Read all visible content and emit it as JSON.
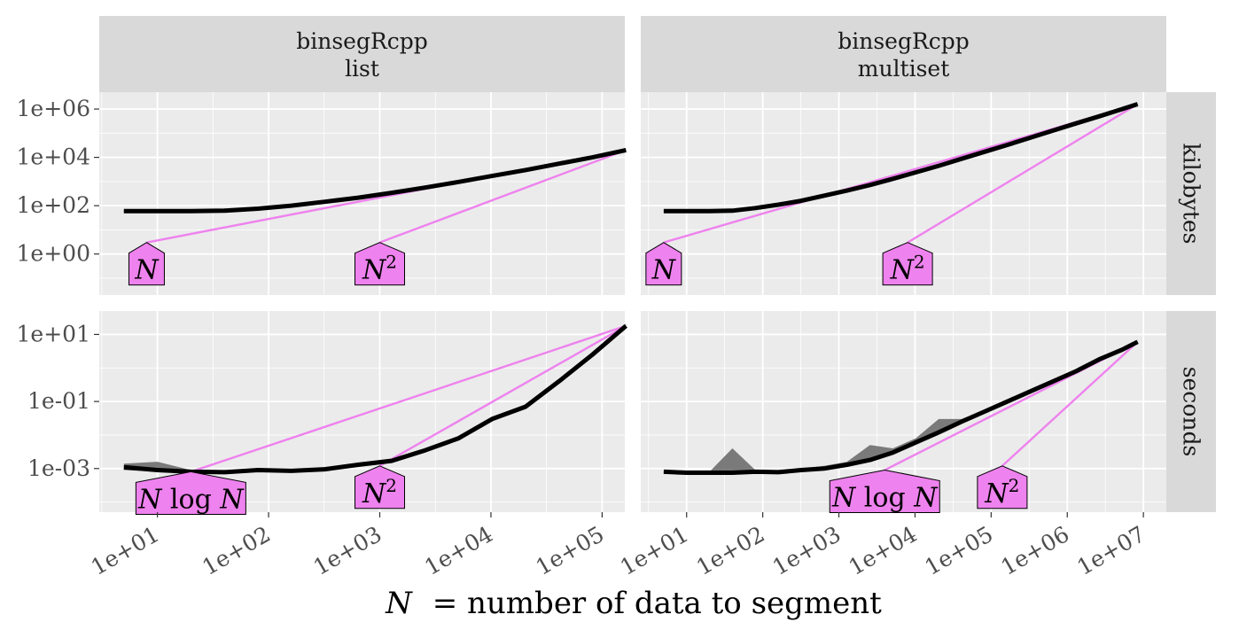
{
  "figure": {
    "xlabel_var": "N",
    "xlabel_rest": "= number of data to segment"
  },
  "colors": {
    "panel_bg": "#ebebeb",
    "strip_bg": "#d9d9d9",
    "grid": "#ffffff",
    "ref_line": "#ee82ee",
    "label_fill": "#ee82ee",
    "data_line": "#000000",
    "band_fill": "#6e6e6e",
    "axis_text": "#4d4d4d"
  },
  "facets": {
    "cols": [
      {
        "line1": "binsegRcpp",
        "line2": "list"
      },
      {
        "line1": "binsegRcpp",
        "line2": "multiset"
      }
    ],
    "rows": [
      "kilobytes",
      "seconds"
    ]
  },
  "chart_data": [
    {
      "type": "line",
      "panel": "list-kilobytes",
      "x_scale": "log10",
      "y_scale": "log10",
      "x_ticks": [
        "1e+01",
        "1e+02",
        "1e+03",
        "1e+04",
        "1e+05"
      ],
      "y_ticks": [
        "1e+06",
        "1e+04",
        "1e+02",
        "1e+00"
      ],
      "xlim": [
        3.0,
        160000
      ],
      "ylim": [
        0.02,
        5000000
      ],
      "data": {
        "x": [
          5,
          10,
          20,
          40,
          80,
          160,
          320,
          640,
          1280,
          2560,
          5120,
          10240,
          20480,
          40960,
          81920,
          163840
        ],
        "median": [
          60,
          60,
          60,
          62,
          75,
          100,
          145,
          215,
          340,
          560,
          960,
          1700,
          3000,
          5500,
          10000,
          20000
        ],
        "lo": [
          50,
          50,
          50,
          52,
          64,
          85,
          125,
          190,
          300,
          500,
          860,
          1530,
          2700,
          5000,
          9000,
          18500
        ],
        "hi": [
          70,
          70,
          70,
          72,
          86,
          115,
          165,
          240,
          380,
          620,
          1060,
          1870,
          3300,
          6000,
          11000,
          22000
        ]
      },
      "refs": [
        {
          "label": "N",
          "sup": "",
          "x1": 8,
          "y1": 3,
          "x2": 163840,
          "y2": 20000
        },
        {
          "label": "N",
          "sup": "2",
          "x1": 1000,
          "y1": 3,
          "x2": 163840,
          "y2": 20000
        }
      ]
    },
    {
      "type": "line",
      "panel": "multiset-kilobytes",
      "x_scale": "log10",
      "y_scale": "log10",
      "x_ticks": [
        "1e+01",
        "1e+02",
        "1e+03",
        "1e+04",
        "1e+05",
        "1e+06",
        "1e+07"
      ],
      "y_ticks": [
        "1e+06",
        "1e+04",
        "1e+02",
        "1e+00"
      ],
      "xlim": [
        2.5,
        20000000
      ],
      "ylim": [
        0.02,
        5000000
      ],
      "data": {
        "x": [
          5,
          10,
          20,
          40,
          80,
          160,
          320,
          640,
          1280,
          2560,
          5120,
          10240,
          20480,
          40960,
          81920,
          163840,
          327680,
          655360,
          1310720,
          2621440,
          5242880,
          8388608
        ],
        "median": [
          60,
          60,
          60,
          62,
          80,
          110,
          160,
          260,
          420,
          720,
          1300,
          2400,
          4500,
          8700,
          17000,
          33000,
          65000,
          130000,
          255000,
          500000,
          1000000,
          1600000
        ],
        "lo": [
          50,
          50,
          50,
          52,
          68,
          95,
          140,
          230,
          380,
          650,
          1180,
          2200,
          4100,
          8000,
          15500,
          30000,
          59000,
          118000,
          232000,
          455000,
          910000,
          1450000
        ],
        "hi": [
          70,
          70,
          70,
          72,
          92,
          125,
          180,
          290,
          460,
          790,
          1420,
          2600,
          4900,
          9400,
          18500,
          36000,
          71000,
          142000,
          278000,
          545000,
          1090000,
          1750000
        ]
      },
      "refs": [
        {
          "label": "N",
          "sup": "",
          "x1": 5,
          "y1": 3,
          "x2": 8388608,
          "y2": 1600000
        },
        {
          "label": "N",
          "sup": "2",
          "x1": 8000,
          "y1": 3,
          "x2": 8388608,
          "y2": 1600000
        }
      ]
    },
    {
      "type": "line",
      "panel": "list-seconds",
      "x_scale": "log10",
      "y_scale": "log10",
      "x_ticks": [
        "1e+01",
        "1e+02",
        "1e+03",
        "1e+04",
        "1e+05"
      ],
      "y_ticks": [
        "1e+01",
        "1e-01",
        "1e-03"
      ],
      "xlim": [
        3.0,
        160000
      ],
      "ylim": [
        5e-05,
        50
      ],
      "data": {
        "x": [
          5,
          10,
          20,
          40,
          80,
          160,
          320,
          640,
          1280,
          2560,
          5120,
          10240,
          20480,
          40960,
          81920,
          163840
        ],
        "median": [
          0.0011,
          0.0009,
          0.0008,
          0.00078,
          0.0009,
          0.00085,
          0.00095,
          0.0013,
          0.0017,
          0.0035,
          0.008,
          0.03,
          0.07,
          0.4,
          2.5,
          18
        ],
        "lo": [
          0.0009,
          0.0008,
          0.0007,
          0.0007,
          0.0008,
          0.00078,
          0.00088,
          0.0012,
          0.0015,
          0.0031,
          0.007,
          0.026,
          0.06,
          0.35,
          2.2,
          15
        ],
        "hi": [
          0.0014,
          0.0016,
          0.0009,
          0.00085,
          0.001,
          0.00095,
          0.0011,
          0.0015,
          0.002,
          0.004,
          0.0093,
          0.035,
          0.08,
          0.45,
          2.8,
          21
        ]
      },
      "refs": [
        {
          "label": "N log N",
          "sup": "",
          "x1": 20,
          "y1": 0.0008,
          "x2": 163840,
          "y2": 18
        },
        {
          "label": "N",
          "sup": "2",
          "x1": 1000,
          "y1": 0.0012,
          "x2": 163840,
          "y2": 18
        }
      ]
    },
    {
      "type": "line",
      "panel": "multiset-seconds",
      "x_scale": "log10",
      "y_scale": "log10",
      "x_ticks": [
        "1e+01",
        "1e+02",
        "1e+03",
        "1e+04",
        "1e+05",
        "1e+06",
        "1e+07"
      ],
      "y_ticks": [
        "1e+01",
        "1e-01",
        "1e-03"
      ],
      "xlim": [
        2.5,
        20000000
      ],
      "ylim": [
        5e-05,
        50
      ],
      "data": {
        "x": [
          5,
          10,
          20,
          40,
          80,
          160,
          320,
          640,
          1280,
          2560,
          5120,
          10240,
          20480,
          40960,
          81920,
          163840,
          327680,
          655360,
          1310720,
          2621440,
          5242880,
          8388608
        ],
        "median": [
          0.0008,
          0.00075,
          0.00075,
          0.00075,
          0.0008,
          0.00078,
          0.0009,
          0.001,
          0.0013,
          0.0018,
          0.003,
          0.006,
          0.012,
          0.025,
          0.05,
          0.1,
          0.2,
          0.4,
          0.8,
          1.8,
          3.5,
          6
        ],
        "lo": [
          0.0007,
          0.0007,
          0.0007,
          0.0007,
          0.00075,
          0.00074,
          0.00085,
          0.00095,
          0.0012,
          0.0016,
          0.0027,
          0.0054,
          0.011,
          0.023,
          0.046,
          0.092,
          0.18,
          0.37,
          0.74,
          1.65,
          3.2,
          5.5
        ],
        "hi": [
          0.0009,
          0.0008,
          0.0008,
          0.004,
          0.0009,
          0.00085,
          0.001,
          0.0012,
          0.0016,
          0.005,
          0.004,
          0.008,
          0.03,
          0.03,
          0.055,
          0.11,
          0.22,
          0.44,
          0.88,
          1.95,
          3.8,
          6.6
        ]
      },
      "refs": [
        {
          "label": "N log N",
          "sup": "",
          "x1": 4000,
          "y1": 0.0009,
          "x2": 8388608,
          "y2": 6
        },
        {
          "label": "N",
          "sup": "2",
          "x1": 140000,
          "y1": 0.0012,
          "x2": 8388608,
          "y2": 6
        }
      ]
    }
  ]
}
